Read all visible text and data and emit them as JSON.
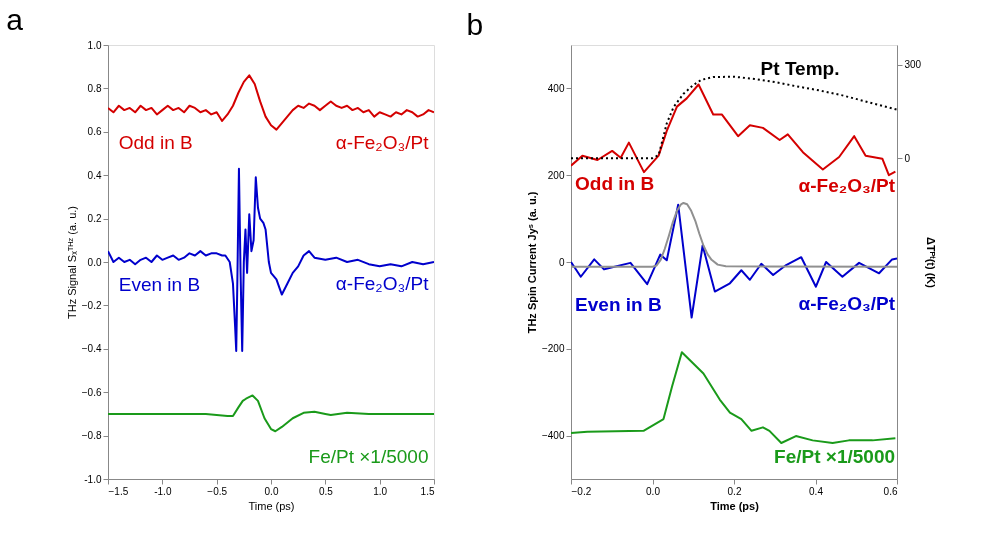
{
  "chart_data": [
    {
      "type": "line",
      "title": "a",
      "xlabel": "Time (ps)",
      "ylabel": "THz Signal Sₓᵀᴴᶻ (a. u.)",
      "xlim": [
        -1.5,
        1.5
      ],
      "xticks": [
        -1.5,
        {
          "value": -1,
          "label": "-1.0"
        },
        -0.5,
        {
          "value": 0,
          "label": "0.0"
        },
        0.5,
        {
          "value": 1,
          "label": "1.0"
        },
        1.5
      ],
      "ylim": [
        -1,
        1
      ],
      "yticks": [
        {
          "value": -1,
          "label": "-1.0"
        },
        -0.8,
        -0.6,
        -0.4,
        -0.2,
        {
          "value": 0,
          "label": "0.0"
        },
        0.2,
        0.4,
        0.6,
        0.8,
        {
          "value": 1,
          "label": "1.0"
        }
      ],
      "grid": false,
      "series": [
        {
          "name": "Odd in B",
          "color": "#d40000",
          "x": [
            -1.5,
            -1.45,
            -1.4,
            -1.35,
            -1.3,
            -1.25,
            -1.2,
            -1.15,
            -1.1,
            -1.05,
            -1.0,
            -0.95,
            -0.9,
            -0.85,
            -0.8,
            -0.75,
            -0.7,
            -0.65,
            -0.6,
            -0.55,
            -0.5,
            -0.45,
            -0.4,
            -0.35,
            -0.3,
            -0.25,
            -0.2,
            -0.15,
            -0.1,
            -0.05,
            0.0,
            0.05,
            0.1,
            0.15,
            0.2,
            0.25,
            0.3,
            0.35,
            0.4,
            0.45,
            0.5,
            0.55,
            0.6,
            0.65,
            0.7,
            0.75,
            0.8,
            0.85,
            0.9,
            0.95,
            1.0,
            1.05,
            1.1,
            1.15,
            1.2,
            1.25,
            1.3,
            1.35,
            1.4,
            1.45,
            1.5
          ],
          "values": [
            0.71,
            0.69,
            0.72,
            0.7,
            0.71,
            0.69,
            0.72,
            0.7,
            0.71,
            0.68,
            0.7,
            0.72,
            0.7,
            0.71,
            0.69,
            0.72,
            0.71,
            0.69,
            0.7,
            0.68,
            0.69,
            0.65,
            0.68,
            0.72,
            0.78,
            0.83,
            0.86,
            0.82,
            0.74,
            0.67,
            0.63,
            0.61,
            0.64,
            0.67,
            0.7,
            0.72,
            0.71,
            0.73,
            0.72,
            0.7,
            0.72,
            0.74,
            0.72,
            0.71,
            0.72,
            0.7,
            0.71,
            0.69,
            0.7,
            0.67,
            0.69,
            0.68,
            0.67,
            0.69,
            0.68,
            0.7,
            0.69,
            0.67,
            0.68,
            0.7,
            0.69
          ]
        },
        {
          "name": "Even in B",
          "color": "#0000cc",
          "x": [
            -1.5,
            -1.45,
            -1.4,
            -1.35,
            -1.3,
            -1.25,
            -1.2,
            -1.15,
            -1.1,
            -1.05,
            -1.0,
            -0.95,
            -0.9,
            -0.85,
            -0.8,
            -0.75,
            -0.7,
            -0.65,
            -0.6,
            -0.55,
            -0.5,
            -0.45,
            -0.42,
            -0.38,
            -0.35,
            -0.33,
            -0.32,
            -0.31,
            -0.295,
            -0.28,
            -0.265,
            -0.25,
            -0.235,
            -0.22,
            -0.2,
            -0.18,
            -0.16,
            -0.14,
            -0.12,
            -0.1,
            -0.07,
            -0.05,
            -0.02,
            0.0,
            0.05,
            0.1,
            0.15,
            0.2,
            0.25,
            0.3,
            0.35,
            0.4,
            0.5,
            0.6,
            0.7,
            0.8,
            0.9,
            1.0,
            1.1,
            1.2,
            1.3,
            1.4,
            1.5
          ],
          "values": [
            0.05,
            0.0,
            0.02,
            0.0,
            0.01,
            -0.01,
            0.01,
            0.02,
            0.0,
            0.03,
            0.01,
            0.02,
            0.03,
            0.01,
            0.02,
            0.04,
            0.03,
            0.05,
            0.03,
            0.04,
            0.04,
            0.03,
            0.03,
            0.0,
            -0.1,
            -0.3,
            -0.41,
            -0.1,
            0.43,
            -0.05,
            -0.41,
            0.0,
            0.15,
            -0.05,
            0.22,
            0.05,
            0.1,
            0.39,
            0.25,
            0.2,
            0.18,
            0.15,
            0.0,
            -0.05,
            -0.08,
            -0.15,
            -0.1,
            -0.05,
            -0.02,
            0.03,
            0.05,
            0.02,
            0.01,
            0.02,
            0.0,
            0.01,
            -0.01,
            -0.02,
            -0.01,
            -0.02,
            0.0,
            -0.01,
            0.0
          ]
        },
        {
          "name": "Fe/Pt ×1/5000",
          "color": "#1a9a1a",
          "x": [
            -1.5,
            -1.0,
            -0.6,
            -0.4,
            -0.35,
            -0.3,
            -0.26,
            -0.23,
            -0.17,
            -0.12,
            -0.06,
            0.0,
            0.04,
            0.1,
            0.2,
            0.3,
            0.4,
            0.5,
            0.55,
            0.7,
            0.9,
            1.2,
            1.5
          ],
          "values": [
            -0.7,
            -0.7,
            -0.7,
            -0.71,
            -0.71,
            -0.67,
            -0.64,
            -0.63,
            -0.615,
            -0.64,
            -0.72,
            -0.77,
            -0.78,
            -0.76,
            -0.72,
            -0.695,
            -0.69,
            -0.7,
            -0.705,
            -0.695,
            -0.7,
            -0.7,
            -0.7
          ]
        }
      ],
      "annotations": [
        "α-Fe₂O₃/Pt",
        "α-Fe₂O₃/Pt"
      ]
    },
    {
      "type": "line",
      "title": "b",
      "xlabel": "Time (ps)",
      "ylabel": "THz Spin Current Jyˢ (a. u.)",
      "y2label": "ΔTᴾᵗ(t) (K)",
      "xlim": [
        -0.2,
        0.6
      ],
      "xticks": [
        -0.2,
        {
          "value": 0,
          "label": "0.0"
        },
        0.2,
        0.4,
        0.6
      ],
      "ylim": [
        -500,
        500
      ],
      "yticks": [
        -400,
        -200,
        0,
        200,
        400
      ],
      "y2lim": [
        -1032,
        364
      ],
      "y2ticks": [
        0,
        300
      ],
      "grid": false,
      "series": [
        {
          "name": "Odd in B",
          "color": "#d40000",
          "x": [
            -0.2,
            -0.172,
            -0.135,
            -0.099,
            -0.078,
            -0.058,
            -0.021,
            0.015,
            0.035,
            0.06,
            0.084,
            0.113,
            0.149,
            0.17,
            0.21,
            0.239,
            0.271,
            0.312,
            0.332,
            0.369,
            0.418,
            0.458,
            0.495,
            0.523,
            0.564,
            0.58,
            0.596
          ],
          "values": [
            222,
            245,
            235,
            256,
            240,
            275,
            207,
            245,
            302,
            358,
            377,
            409,
            340,
            340,
            290,
            315,
            309,
            281,
            294,
            253,
            213,
            242,
            290,
            245,
            238,
            200,
            208
          ]
        },
        {
          "name": "Even in B",
          "color": "#0000cc",
          "x": [
            -0.2,
            -0.176,
            -0.143,
            -0.119,
            -0.111,
            -0.054,
            -0.013,
            0.019,
            0.035,
            0.063,
            0.096,
            0.123,
            0.153,
            0.19,
            0.218,
            0.239,
            0.267,
            0.296,
            0.328,
            0.365,
            0.401,
            0.426,
            0.466,
            0.507,
            0.556,
            0.588,
            0.6
          ],
          "values": [
            0,
            -34,
            6,
            -17,
            -15,
            -2,
            -51,
            17,
            4,
            132,
            -128,
            38,
            -68,
            -49,
            -19,
            -41,
            -4,
            -30,
            -7,
            11,
            -57,
            0,
            -34,
            -2,
            -26,
            6,
            8
          ]
        },
        {
          "name": "Fe/Pt ×1/5000",
          "color": "#1a9a1a",
          "x": [
            -0.2,
            -0.16,
            -0.022,
            0.027,
            0.048,
            0.072,
            0.125,
            0.165,
            0.19,
            0.218,
            0.243,
            0.271,
            0.287,
            0.316,
            0.352,
            0.393,
            0.442,
            0.482,
            0.54,
            0.596
          ],
          "values": [
            -394,
            -391,
            -389,
            -362,
            -287,
            -208,
            -257,
            -317,
            -347,
            -362,
            -389,
            -381,
            -389,
            -417,
            -401,
            -411,
            -417,
            -411,
            -411,
            -406
          ]
        },
        {
          "color": "#909090",
          "x": [
            -0.2,
            0.0,
            0.01,
            0.02,
            0.03,
            0.04,
            0.05,
            0.06,
            0.07,
            0.076,
            0.085,
            0.095,
            0.105,
            0.115,
            0.125,
            0.135,
            0.145,
            0.16,
            0.18,
            0.6
          ],
          "values": [
            -11,
            -11,
            -8,
            5,
            30,
            60,
            92,
            118,
            133,
            136,
            133,
            118,
            95,
            65,
            38,
            18,
            5,
            -6,
            -10,
            -11
          ]
        },
        {
          "name": "Pt Temp.",
          "color": "#000000",
          "axis": "y2",
          "line_style": "dotted",
          "x": [
            -0.2,
            -0.1,
            0.0,
            0.015,
            0.025,
            0.035,
            0.052,
            0.076,
            0.1,
            0.12,
            0.149,
            0.2,
            0.25,
            0.3,
            0.35,
            0.409,
            0.466,
            0.53,
            0.6
          ],
          "values": [
            0,
            0,
            0,
            10,
            60,
            112,
            165,
            207,
            235,
            252,
            261,
            262,
            255,
            245,
            232,
            218,
            202,
            180,
            156
          ]
        }
      ],
      "annotations": [
        "α-Fe₂O₃/Pt",
        "α-Fe₂O₃/Pt"
      ]
    }
  ]
}
